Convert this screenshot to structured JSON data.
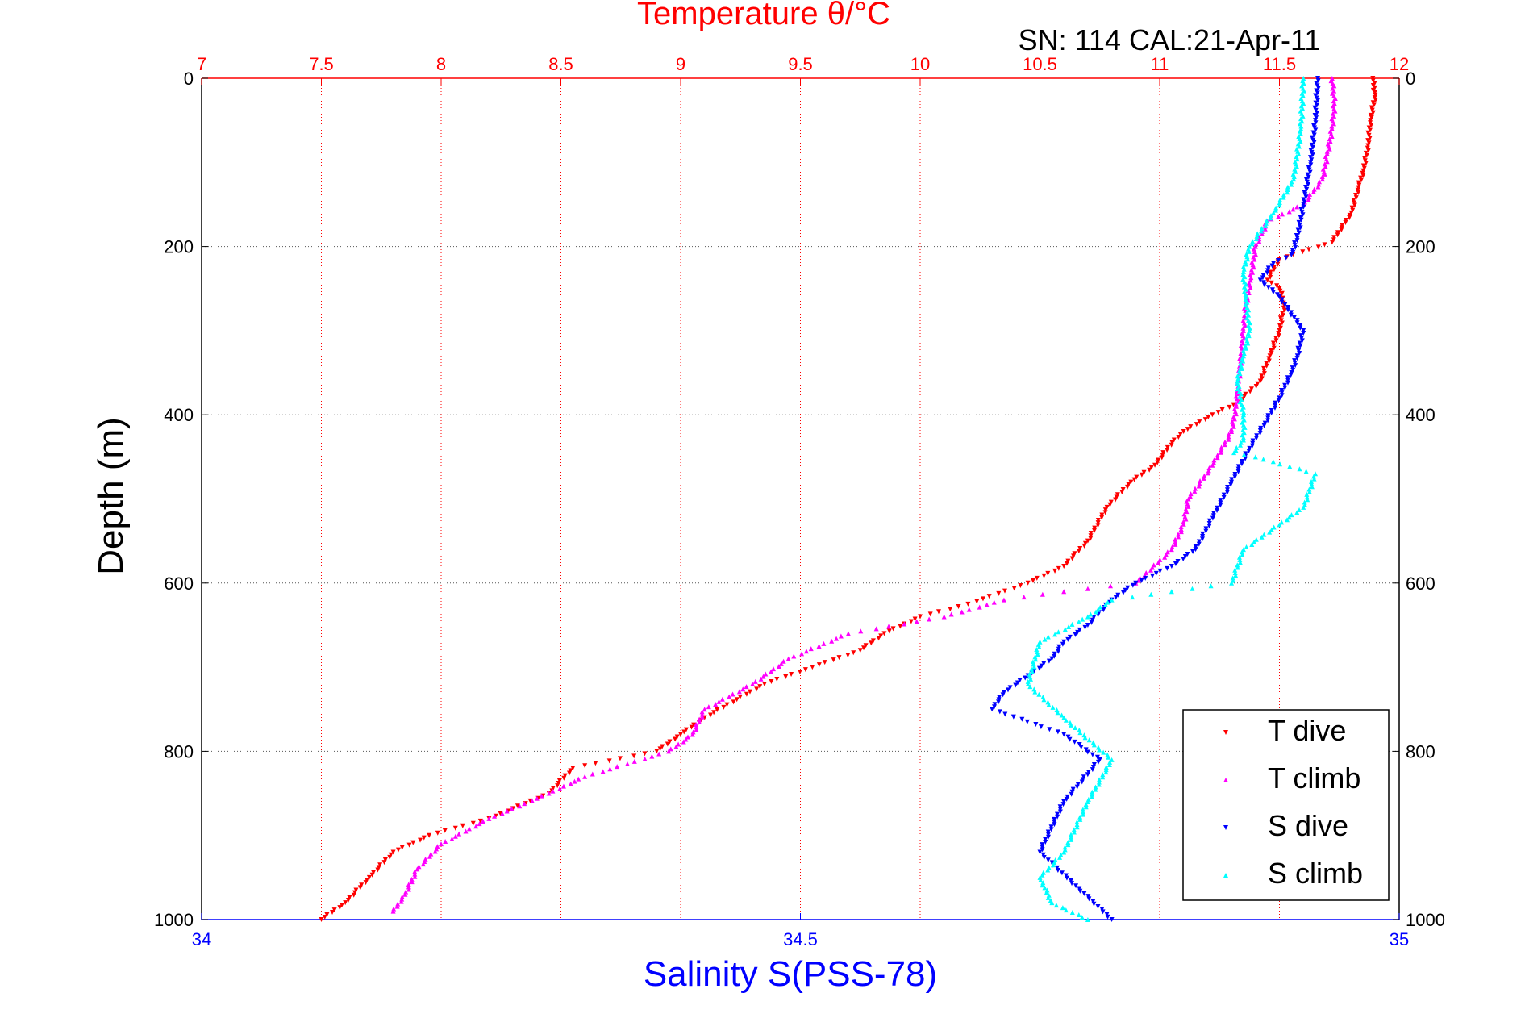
{
  "chart_data": {
    "type": "scatter",
    "title": "Temperature θ/°C",
    "subtitle": "SN: 114  CAL:21-Apr-11",
    "xlabel_top": "Temperature θ/°C",
    "xlabel_bottom": "Salinity S(PSS-78)",
    "ylabel": "Depth (m)",
    "temperature_axis": {
      "range": [
        7,
        12
      ],
      "ticks": [
        "7",
        "7.5",
        "8",
        "8.5",
        "9",
        "9.5",
        "10",
        "10.5",
        "11",
        "11.5",
        "12"
      ]
    },
    "salinity_axis": {
      "range": [
        34,
        35
      ],
      "ticks": [
        "34",
        "34.5",
        "35"
      ]
    },
    "depth_axis": {
      "range": [
        0,
        1000
      ],
      "reversed": true,
      "ticks": [
        "0",
        "200",
        "400",
        "600",
        "800",
        "1000"
      ]
    },
    "grid": true,
    "legend_position": "bottom-right",
    "series": [
      {
        "name": "T dive",
        "axis": "temperature",
        "color": "#ff0000",
        "marker": "triangle-down",
        "x": [
          11.89,
          11.9,
          11.88,
          11.87,
          11.85,
          11.83,
          11.8,
          11.72,
          11.5,
          11.45,
          11.5,
          11.52,
          11.5,
          11.46,
          11.42,
          11.33,
          11.22,
          11.1,
          11.06,
          10.98,
          10.88,
          10.78,
          10.7,
          10.6,
          10.45,
          10.2,
          10.0,
          9.85,
          9.75,
          9.55,
          9.35,
          9.1,
          9.0,
          8.9,
          8.55,
          8.45,
          8.2,
          7.95,
          7.8,
          7.7,
          7.6,
          7.5
        ],
        "y": [
          0,
          20,
          50,
          80,
          110,
          130,
          160,
          195,
          215,
          240,
          250,
          270,
          300,
          330,
          360,
          385,
          400,
          420,
          430,
          460,
          480,
          510,
          550,
          580,
          600,
          625,
          640,
          660,
          680,
          700,
          720,
          760,
          780,
          800,
          820,
          850,
          880,
          900,
          920,
          950,
          980,
          1000
        ]
      },
      {
        "name": "T climb",
        "axis": "temperature",
        "color": "#ff00ff",
        "marker": "triangle-up",
        "x": [
          11.72,
          11.73,
          11.72,
          11.7,
          11.68,
          11.6,
          11.45,
          11.4,
          11.38,
          11.36,
          11.35,
          11.34,
          11.33,
          11.32,
          11.3,
          11.22,
          11.12,
          11.1,
          11.05,
          10.9,
          10.6,
          10.35,
          10.1,
          9.7,
          9.45,
          9.3,
          9.1,
          9.05,
          8.95,
          8.6,
          8.45,
          8.2,
          8.0,
          7.9,
          7.85,
          7.8
        ],
        "y": [
          0,
          30,
          60,
          90,
          120,
          150,
          170,
          200,
          240,
          270,
          300,
          330,
          360,
          390,
          420,
          460,
          500,
          530,
          560,
          600,
          610,
          620,
          640,
          660,
          690,
          720,
          750,
          780,
          800,
          830,
          850,
          880,
          910,
          940,
          970,
          990
        ]
      },
      {
        "name": "S dive",
        "axis": "salinity",
        "color": "#0000ff",
        "marker": "triangle-down",
        "x": [
          34.932,
          34.93,
          34.926,
          34.92,
          34.915,
          34.91,
          34.895,
          34.884,
          34.9,
          34.92,
          34.915,
          34.91,
          34.9,
          34.888,
          34.875,
          34.86,
          34.845,
          34.83,
          34.81,
          34.78,
          34.76,
          34.74,
          34.72,
          34.71,
          34.69,
          34.67,
          34.66,
          34.72,
          34.75,
          34.72,
          34.7,
          34.73,
          34.76
        ],
        "y": [
          0,
          50,
          100,
          150,
          190,
          210,
          220,
          240,
          260,
          300,
          330,
          350,
          380,
          410,
          440,
          480,
          520,
          560,
          580,
          600,
          620,
          650,
          670,
          690,
          710,
          730,
          750,
          780,
          810,
          860,
          920,
          960,
          1000
        ]
      },
      {
        "name": "S climb",
        "axis": "salinity",
        "color": "#00ffff",
        "marker": "triangle-up",
        "x": [
          34.92,
          34.918,
          34.912,
          34.895,
          34.875,
          34.87,
          34.872,
          34.875,
          34.87,
          34.865,
          34.87,
          34.87,
          34.862,
          34.88,
          34.93,
          34.92,
          34.87,
          34.86,
          34.81,
          34.76,
          34.74,
          34.7,
          34.69,
          34.72,
          34.76,
          34.74,
          34.72,
          34.7,
          34.71,
          34.74
        ],
        "y": [
          0,
          60,
          120,
          160,
          200,
          230,
          260,
          300,
          330,
          360,
          400,
          430,
          445,
          450,
          470,
          510,
          560,
          600,
          610,
          620,
          640,
          670,
          720,
          760,
          810,
          860,
          920,
          950,
          980,
          1000
        ]
      }
    ]
  }
}
